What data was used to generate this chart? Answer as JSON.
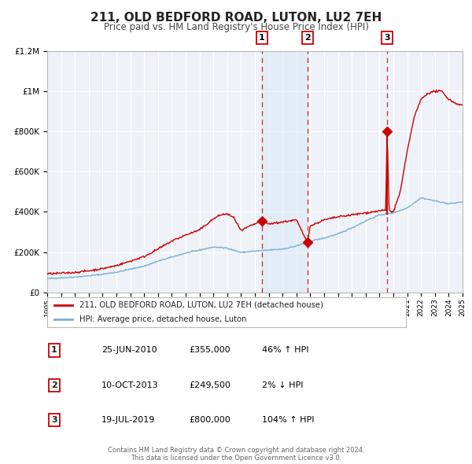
{
  "title": "211, OLD BEDFORD ROAD, LUTON, LU2 7EH",
  "subtitle": "Price paid vs. HM Land Registry's House Price Index (HPI)",
  "title_fontsize": 11,
  "subtitle_fontsize": 8.5,
  "background_color": "#ffffff",
  "plot_bg_color": "#eef2f8",
  "grid_color": "#ffffff",
  "red_line_color": "#cc0000",
  "blue_line_color": "#7bafd4",
  "shade_color": "#d8e8f5",
  "ylim": [
    0,
    1200000
  ],
  "yticks": [
    0,
    200000,
    400000,
    600000,
    800000,
    1000000,
    1200000
  ],
  "ytick_labels": [
    "£0",
    "£200K",
    "£400K",
    "£600K",
    "£800K",
    "£1M",
    "£1.2M"
  ],
  "year_start": 1995,
  "year_end": 2025,
  "transactions": [
    {
      "label": "1",
      "date_str": "25-JUN-2010",
      "price": 355000,
      "price_str": "£355,000",
      "hpi_diff": "46% ↑ HPI",
      "year": 2010.49
    },
    {
      "label": "2",
      "date_str": "10-OCT-2013",
      "price": 249500,
      "price_str": "£249,500",
      "hpi_diff": "2% ↓ HPI",
      "year": 2013.78
    },
    {
      "label": "3",
      "date_str": "19-JUL-2019",
      "price": 800000,
      "price_str": "£800,000",
      "hpi_diff": "104% ↑ HPI",
      "year": 2019.55
    }
  ],
  "legend_label_red": "211, OLD BEDFORD ROAD, LUTON, LU2 7EH (detached house)",
  "legend_label_blue": "HPI: Average price, detached house, Luton",
  "footer": "Contains HM Land Registry data © Crown copyright and database right 2024.\nThis data is licensed under the Open Government Licence v3.0."
}
